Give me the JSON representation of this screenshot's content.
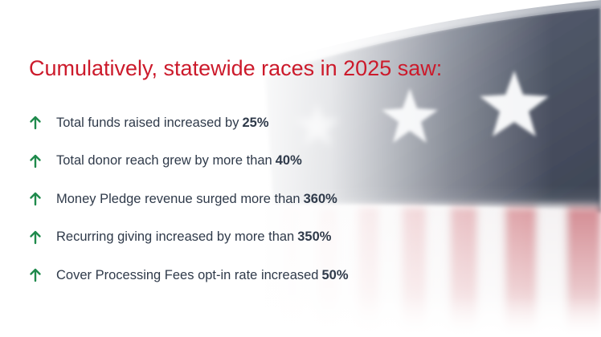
{
  "slide": {
    "title": "Cumulatively, statewide races in 2025 saw:",
    "accent_color": "#cc1a2b",
    "arrow_color": "#1f8a4c",
    "arrow_icon": "arrow-up-icon",
    "stats": [
      {
        "text": "Total funds raised increased by",
        "value": "25%"
      },
      {
        "text": "Total donor reach grew by more than",
        "value": "40%"
      },
      {
        "text": "Money Pledge revenue surged more than",
        "value": "360%"
      },
      {
        "text": "Recurring giving increased by more than",
        "value": "350%"
      },
      {
        "text": "Cover Processing Fees opt-in rate increased",
        "value": "50%"
      }
    ]
  }
}
